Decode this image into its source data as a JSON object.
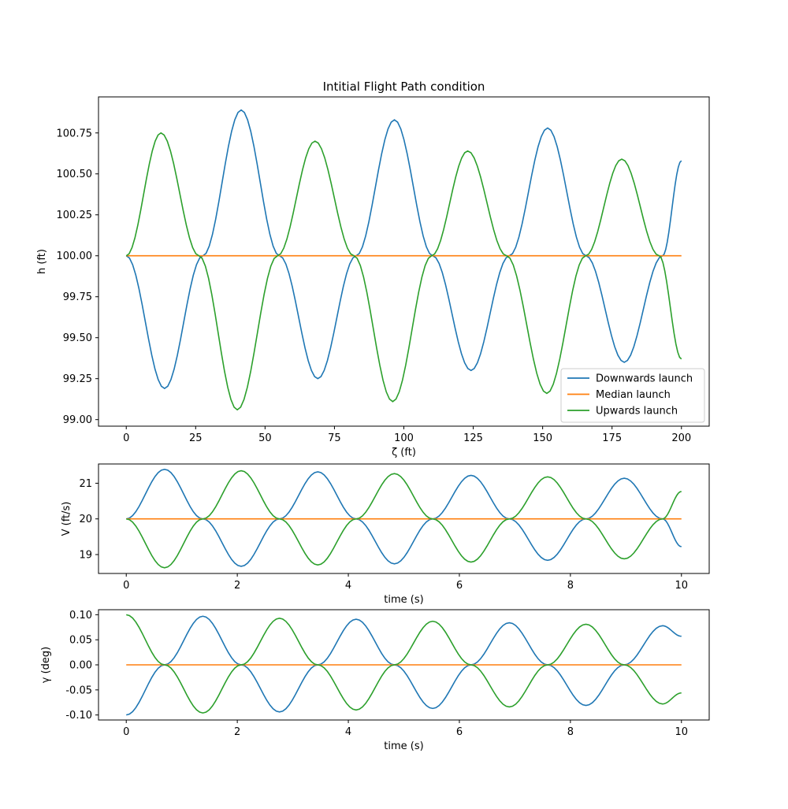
{
  "colors": {
    "downwards": "#1f77b4",
    "median": "#ff7f0e",
    "upwards": "#2ca02c"
  },
  "chart_data": [
    {
      "type": "line",
      "title": "Intitial Flight Path condition",
      "xlabel": "ζ (ft)",
      "ylabel": "h (ft)",
      "xticks": [
        "0",
        "25",
        "50",
        "75",
        "100",
        "125",
        "150",
        "175",
        "200"
      ],
      "yticks": [
        "99.00",
        "99.25",
        "99.50",
        "99.75",
        "100.00",
        "100.25",
        "100.50",
        "100.75"
      ],
      "xlim": [
        -10,
        210
      ],
      "ylim": [
        98.96,
        100.97
      ],
      "legend_position": "lower right",
      "series": [
        {
          "name": "Downwards launch",
          "x": [
            0,
            13.8,
            27.6,
            41.4,
            55.2,
            69.0,
            82.8,
            96.6,
            110.4,
            124.2,
            138.0,
            151.8,
            165.6,
            179.4,
            193.2,
            200
          ],
          "y": [
            100.0,
            99.19,
            100.0,
            100.89,
            100.0,
            99.25,
            100.0,
            100.83,
            100.0,
            99.3,
            100.0,
            100.78,
            100.0,
            99.35,
            100.0,
            100.58
          ]
        },
        {
          "name": "Median launch",
          "x": [
            0,
            200
          ],
          "y": [
            100.0,
            100.0
          ]
        },
        {
          "name": "Upwards launch",
          "x": [
            0,
            12.5,
            26.2,
            40.0,
            54.5,
            68.0,
            82.0,
            96.0,
            110.0,
            123.0,
            137.0,
            151.5,
            165.5,
            178.5,
            192.0,
            200
          ],
          "y": [
            100.0,
            100.75,
            100.0,
            99.06,
            100.0,
            100.7,
            100.0,
            99.11,
            100.0,
            100.64,
            100.0,
            99.16,
            100.0,
            100.59,
            100.0,
            99.37
          ]
        }
      ]
    },
    {
      "type": "line",
      "xlabel": "time (s)",
      "ylabel": "V (ft/s)",
      "xticks": [
        "0",
        "2",
        "4",
        "6",
        "8",
        "10"
      ],
      "yticks": [
        "19",
        "20",
        "21"
      ],
      "xlim": [
        -0.5,
        10.5
      ],
      "ylim": [
        18.47,
        21.54
      ],
      "series": [
        {
          "name": "Downwards launch",
          "x": [
            0,
            0.69,
            1.38,
            2.07,
            2.76,
            3.45,
            4.14,
            4.83,
            5.52,
            6.21,
            6.9,
            7.59,
            8.28,
            8.97,
            9.66,
            10
          ],
          "y": [
            20.0,
            21.39,
            20.0,
            18.67,
            20.0,
            21.32,
            20.0,
            18.74,
            20.0,
            21.22,
            20.0,
            18.84,
            20.0,
            21.14,
            20.0,
            19.22
          ]
        },
        {
          "name": "Median launch",
          "x": [
            0,
            10
          ],
          "y": [
            20.0,
            20.0
          ]
        },
        {
          "name": "Upwards launch",
          "x": [
            0,
            0.69,
            1.38,
            2.07,
            2.76,
            3.45,
            4.14,
            4.83,
            5.52,
            6.21,
            6.9,
            7.59,
            8.28,
            8.97,
            9.66,
            10
          ],
          "y": [
            20.0,
            18.63,
            20.0,
            21.35,
            20.0,
            18.71,
            20.0,
            21.27,
            20.0,
            18.79,
            20.0,
            21.18,
            20.0,
            18.88,
            20.0,
            20.77
          ]
        }
      ]
    },
    {
      "type": "line",
      "xlabel": "time (s)",
      "ylabel": "γ (deg)",
      "xticks": [
        "0",
        "2",
        "4",
        "6",
        "8",
        "10"
      ],
      "yticks": [
        "-0.10",
        "-0.05",
        "0.00",
        "0.05",
        "0.10"
      ],
      "xlim": [
        -0.5,
        10.5
      ],
      "ylim": [
        -0.11,
        0.11
      ],
      "series": [
        {
          "name": "Downwards launch",
          "x": [
            0,
            0.69,
            1.38,
            2.07,
            2.76,
            3.45,
            4.14,
            4.83,
            5.52,
            6.21,
            6.9,
            7.59,
            8.28,
            8.97,
            9.66,
            10
          ],
          "y": [
            -0.1,
            0.0,
            0.097,
            0.0,
            -0.094,
            0.0,
            0.091,
            0.0,
            -0.087,
            0.0,
            0.084,
            0.0,
            -0.081,
            0.0,
            0.078,
            0.057
          ]
        },
        {
          "name": "Median launch",
          "x": [
            0,
            10
          ],
          "y": [
            0.0,
            0.0
          ]
        },
        {
          "name": "Upwards launch",
          "x": [
            0,
            0.69,
            1.38,
            2.07,
            2.76,
            3.45,
            4.14,
            4.83,
            5.52,
            6.21,
            6.9,
            7.59,
            8.28,
            8.97,
            9.66,
            10
          ],
          "y": [
            0.1,
            0.0,
            -0.096,
            0.0,
            0.093,
            0.0,
            -0.09,
            0.0,
            0.087,
            0.0,
            -0.084,
            0.0,
            0.081,
            0.0,
            -0.078,
            -0.056
          ]
        }
      ]
    }
  ]
}
